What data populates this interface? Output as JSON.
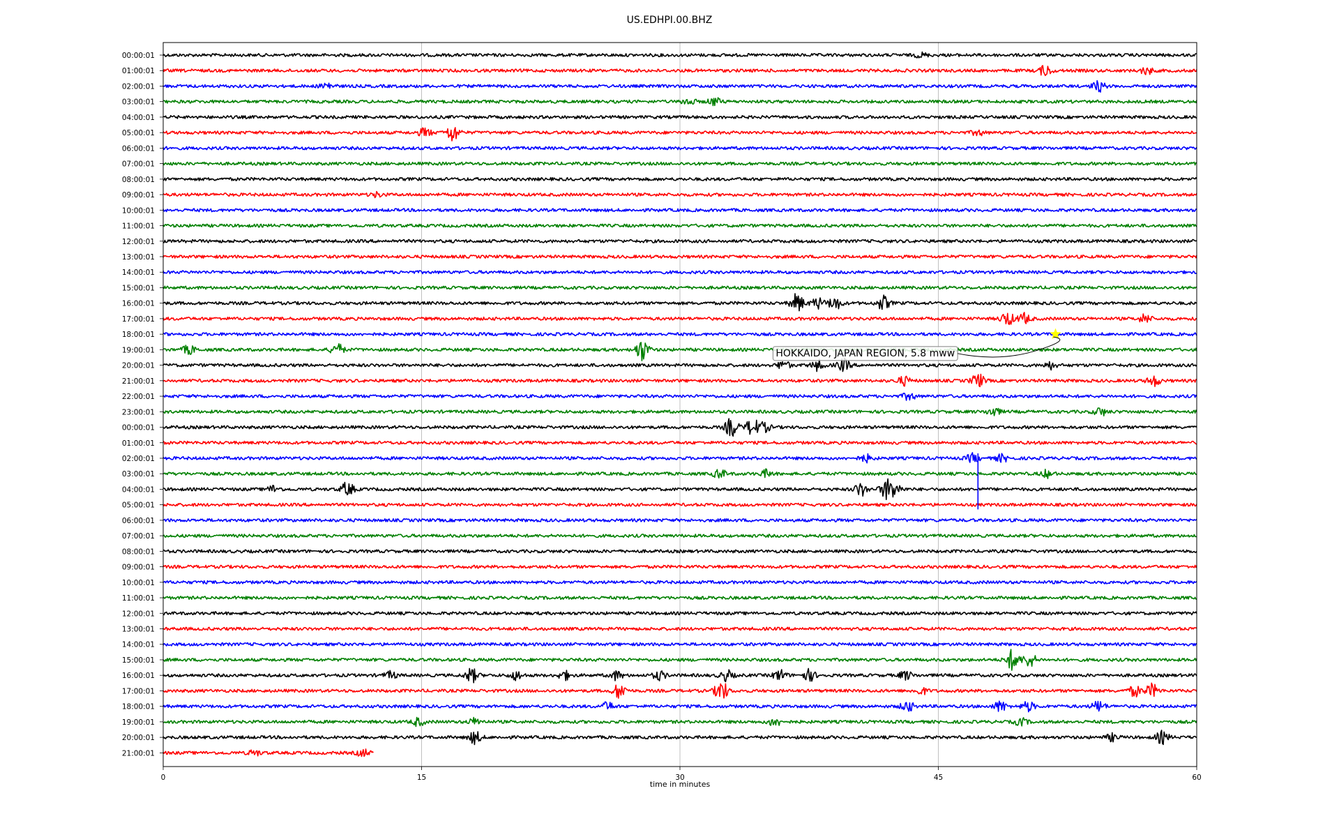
{
  "chart_data": {
    "type": "line",
    "title": "US.EDHPI.00.BHZ",
    "xlabel": "time in minutes",
    "ylabel": "",
    "xlim": [
      0,
      60
    ],
    "x_ticks": [
      "0",
      "15",
      "30",
      "45",
      "60"
    ],
    "grid": "vertical",
    "trace_colors": [
      "#000000",
      "#ff0000",
      "#0000ff",
      "#008000"
    ],
    "rows": [
      {
        "label": "00:00:01",
        "color": "#000000",
        "end_minute": 60,
        "bursts": [
          [
            44,
            0.5
          ]
        ]
      },
      {
        "label": "01:00:01",
        "color": "#ff0000",
        "end_minute": 60,
        "bursts": [
          [
            51.2,
            1.2
          ],
          [
            57.1,
            0.8
          ]
        ]
      },
      {
        "label": "02:00:01",
        "color": "#0000ff",
        "end_minute": 60,
        "bursts": [
          [
            9.5,
            0.8
          ],
          [
            54.3,
            1.2
          ]
        ]
      },
      {
        "label": "03:00:01",
        "color": "#008000",
        "end_minute": 60,
        "bursts": [
          [
            30.5,
            0.8
          ],
          [
            32,
            0.9
          ]
        ]
      },
      {
        "label": "04:00:01",
        "color": "#000000",
        "end_minute": 60,
        "bursts": []
      },
      {
        "label": "05:00:01",
        "color": "#ff0000",
        "end_minute": 60,
        "bursts": [
          [
            15.2,
            1.0
          ],
          [
            16.8,
            2.0
          ],
          [
            47.3,
            0.6
          ]
        ]
      },
      {
        "label": "06:00:01",
        "color": "#0000ff",
        "end_minute": 60,
        "bursts": []
      },
      {
        "label": "07:00:01",
        "color": "#008000",
        "end_minute": 60,
        "bursts": []
      },
      {
        "label": "08:00:01",
        "color": "#000000",
        "end_minute": 60,
        "bursts": []
      },
      {
        "label": "09:00:01",
        "color": "#ff0000",
        "end_minute": 60,
        "bursts": [
          [
            12.4,
            0.5
          ]
        ]
      },
      {
        "label": "10:00:01",
        "color": "#0000ff",
        "end_minute": 60,
        "bursts": []
      },
      {
        "label": "11:00:01",
        "color": "#008000",
        "end_minute": 60,
        "bursts": []
      },
      {
        "label": "12:00:01",
        "color": "#000000",
        "end_minute": 60,
        "bursts": []
      },
      {
        "label": "13:00:01",
        "color": "#ff0000",
        "end_minute": 60,
        "bursts": []
      },
      {
        "label": "14:00:01",
        "color": "#0000ff",
        "end_minute": 60,
        "bursts": []
      },
      {
        "label": "15:00:01",
        "color": "#008000",
        "end_minute": 60,
        "bursts": []
      },
      {
        "label": "16:00:01",
        "color": "#000000",
        "end_minute": 60,
        "bursts": [
          [
            36.8,
            2.2
          ],
          [
            38,
            1.2
          ],
          [
            39,
            1.5
          ],
          [
            41.8,
            1.6
          ]
        ]
      },
      {
        "label": "17:00:01",
        "color": "#ff0000",
        "end_minute": 60,
        "bursts": [
          [
            49,
            1.6
          ],
          [
            50,
            1.2
          ],
          [
            57,
            1.0
          ]
        ]
      },
      {
        "label": "18:00:01",
        "color": "#0000ff",
        "end_minute": 60,
        "bursts": []
      },
      {
        "label": "19:00:01",
        "color": "#008000",
        "end_minute": 60,
        "bursts": [
          [
            1.5,
            1.0
          ],
          [
            10.1,
            1.4
          ],
          [
            27.8,
            2.5
          ]
        ]
      },
      {
        "label": "20:00:01",
        "color": "#000000",
        "end_minute": 60,
        "bursts": [
          [
            36,
            1.0
          ],
          [
            38,
            1.2
          ],
          [
            39.5,
            1.4
          ],
          [
            51.5,
            0.8
          ]
        ]
      },
      {
        "label": "21:00:01",
        "color": "#ff0000",
        "end_minute": 60,
        "bursts": [
          [
            43,
            1.0
          ],
          [
            47.3,
            1.6
          ],
          [
            57.5,
            1.2
          ]
        ]
      },
      {
        "label": "22:00:01",
        "color": "#0000ff",
        "end_minute": 60,
        "bursts": [
          [
            43.3,
            0.8
          ]
        ]
      },
      {
        "label": "23:00:01",
        "color": "#008000",
        "end_minute": 60,
        "bursts": [
          [
            48.2,
            1.0
          ],
          [
            54.4,
            0.9
          ]
        ]
      },
      {
        "label": "00:00:01",
        "color": "#000000",
        "end_minute": 60,
        "bursts": [
          [
            33,
            2.2
          ],
          [
            34.2,
            2.0
          ],
          [
            34.9,
            1.0
          ]
        ]
      },
      {
        "label": "01:00:01",
        "color": "#ff0000",
        "end_minute": 60,
        "bursts": []
      },
      {
        "label": "02:00:01",
        "color": "#0000ff",
        "end_minute": 60,
        "bursts": [
          [
            40.8,
            0.8
          ],
          [
            47,
            1.0
          ],
          [
            48.7,
            0.8
          ]
        ]
      },
      {
        "label": "03:00:01",
        "color": "#008000",
        "end_minute": 60,
        "bursts": [
          [
            32.3,
            1.0
          ],
          [
            35,
            0.8
          ],
          [
            51.3,
            0.8
          ]
        ]
      },
      {
        "label": "04:00:01",
        "color": "#000000",
        "end_minute": 60,
        "bursts": [
          [
            6.4,
            0.8
          ],
          [
            10.7,
            1.6
          ],
          [
            40.5,
            1.5
          ],
          [
            42,
            2.2
          ],
          [
            42.5,
            1.4
          ]
        ]
      },
      {
        "label": "05:00:01",
        "color": "#ff0000",
        "end_minute": 60,
        "bursts": []
      },
      {
        "label": "06:00:01",
        "color": "#0000ff",
        "end_minute": 60,
        "bursts": []
      },
      {
        "label": "07:00:01",
        "color": "#008000",
        "end_minute": 60,
        "bursts": []
      },
      {
        "label": "08:00:01",
        "color": "#000000",
        "end_minute": 60,
        "bursts": []
      },
      {
        "label": "09:00:01",
        "color": "#ff0000",
        "end_minute": 60,
        "bursts": []
      },
      {
        "label": "10:00:01",
        "color": "#0000ff",
        "end_minute": 60,
        "bursts": []
      },
      {
        "label": "11:00:01",
        "color": "#008000",
        "end_minute": 60,
        "bursts": []
      },
      {
        "label": "12:00:01",
        "color": "#000000",
        "end_minute": 60,
        "bursts": []
      },
      {
        "label": "13:00:01",
        "color": "#ff0000",
        "end_minute": 60,
        "bursts": []
      },
      {
        "label": "14:00:01",
        "color": "#0000ff",
        "end_minute": 60,
        "bursts": []
      },
      {
        "label": "15:00:01",
        "color": "#008000",
        "end_minute": 60,
        "bursts": [
          [
            49.3,
            2.4
          ],
          [
            50.3,
            1.6
          ]
        ]
      },
      {
        "label": "16:00:01",
        "color": "#000000",
        "end_minute": 60,
        "bursts": [
          [
            13.2,
            0.8
          ],
          [
            17.9,
            1.6
          ],
          [
            20.5,
            1.0
          ],
          [
            23.3,
            1.0
          ],
          [
            26.3,
            1.0
          ],
          [
            28.8,
            1.0
          ],
          [
            32.7,
            1.2
          ],
          [
            35.8,
            1.2
          ],
          [
            37.5,
            1.3
          ],
          [
            43.1,
            1.0
          ]
        ]
      },
      {
        "label": "17:00:01",
        "color": "#ff0000",
        "end_minute": 60,
        "bursts": [
          [
            26.5,
            1.8
          ],
          [
            32.4,
            2.4
          ],
          [
            44,
            0.8
          ],
          [
            56.4,
            1.2
          ],
          [
            57.4,
            1.5
          ]
        ]
      },
      {
        "label": "18:00:01",
        "color": "#0000ff",
        "end_minute": 60,
        "bursts": [
          [
            25.8,
            0.9
          ],
          [
            43.2,
            1.2
          ],
          [
            48.6,
            1.2
          ],
          [
            50.2,
            1.1
          ],
          [
            54.3,
            1.2
          ]
        ]
      },
      {
        "label": "19:00:01",
        "color": "#008000",
        "end_minute": 60,
        "bursts": [
          [
            14.8,
            0.9
          ],
          [
            18.1,
            0.8
          ],
          [
            35.5,
            1.0
          ],
          [
            49.8,
            0.8
          ]
        ]
      },
      {
        "label": "20:00:01",
        "color": "#000000",
        "end_minute": 60,
        "bursts": [
          [
            18.1,
            1.4
          ],
          [
            55.1,
            0.8
          ],
          [
            58,
            1.4
          ]
        ]
      },
      {
        "label": "21:00:01",
        "color": "#ff0000",
        "end_minute": 12.2,
        "bursts": [
          [
            5.3,
            0.6
          ],
          [
            11.6,
            0.8
          ]
        ]
      }
    ],
    "spikes": [
      {
        "row": 26,
        "minute": 47.3,
        "color": "#0000ff",
        "rows_down": 3.3
      }
    ],
    "event_marker": {
      "row": 18,
      "minute": 51.8,
      "color": "#ffff00",
      "shape": "star"
    },
    "annotation": {
      "text": "HOKKAIDO, JAPAN REGION, 5.8 mww",
      "row": 19.2,
      "minute": 35.4
    }
  }
}
